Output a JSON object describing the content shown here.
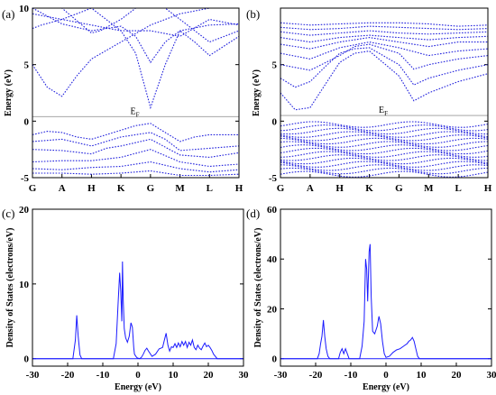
{
  "chart_data": [
    {
      "type": "line",
      "panel_label": "(a)",
      "ylabel": "Energy (eV)",
      "ylim": [
        -5,
        10
      ],
      "yticks": [
        -5,
        0,
        5,
        10
      ],
      "k_points": [
        "G",
        "A",
        "H",
        "K",
        "G",
        "M",
        "L",
        "H"
      ],
      "fermi_label": "E",
      "fermi_sub": "F",
      "fermi_level": 0.4,
      "series": [
        {
          "x": [
            0,
            0.5,
            1,
            1.5,
            2,
            3,
            4,
            5,
            6,
            7
          ],
          "y": [
            5,
            3,
            2.2,
            4,
            5.5,
            7,
            8.5,
            9.5,
            10,
            10
          ]
        },
        {
          "x": [
            0,
            0.3,
            1,
            1.5,
            2,
            3,
            4,
            5,
            6,
            7
          ],
          "y": [
            8.2,
            8.5,
            9,
            9.5,
            10,
            10,
            10,
            10,
            10,
            10
          ]
        },
        {
          "x": [
            0,
            1,
            2,
            3,
            3.5,
            4,
            4.5,
            5,
            6,
            7
          ],
          "y": [
            10,
            8.6,
            8,
            8.4,
            7.5,
            5.2,
            7,
            8,
            8.5,
            8.6
          ]
        },
        {
          "x": [
            0,
            1,
            2,
            2.3,
            3,
            3.5,
            4,
            4.5,
            5,
            6,
            7
          ],
          "y": [
            10,
            10,
            7.8,
            8,
            9,
            10,
            10,
            10,
            9,
            7,
            8
          ]
        },
        {
          "x": [
            0,
            1,
            2,
            3,
            3.5,
            4,
            4.5,
            5,
            5.5,
            6,
            7
          ],
          "y": [
            10,
            10,
            10,
            8,
            6,
            1.2,
            5,
            8,
            7,
            5.8,
            7.5
          ]
        },
        {
          "x": [
            0,
            1,
            2,
            3,
            4,
            5,
            6,
            7
          ],
          "y": [
            9.5,
            9,
            8.5,
            8,
            8,
            7.5,
            9,
            8.5
          ]
        },
        {
          "x": [
            0,
            0.5,
            1,
            1.5,
            2,
            2.5,
            3,
            3.5,
            4,
            4.5,
            5,
            5.5,
            6,
            7
          ],
          "y": [
            -1.2,
            -0.9,
            -1,
            -1.4,
            -1.6,
            -1.2,
            -0.8,
            -0.4,
            -0.2,
            -1,
            -1.8,
            -1.4,
            -1.2,
            -1.2
          ]
        },
        {
          "x": [
            0,
            1,
            1.5,
            2,
            2.5,
            3,
            3.5,
            4,
            4.5,
            5,
            6,
            7
          ],
          "y": [
            -1.8,
            -1.6,
            -1.9,
            -2.2,
            -1.8,
            -1.4,
            -1.2,
            -1,
            -1.6,
            -2.6,
            -2.4,
            -2.2
          ]
        },
        {
          "x": [
            0,
            1,
            2,
            2.5,
            3,
            4,
            5,
            6,
            7
          ],
          "y": [
            -2.5,
            -2.6,
            -2.9,
            -2.4,
            -2.2,
            -1.6,
            -3,
            -3.2,
            -2.8
          ]
        },
        {
          "x": [
            0,
            1,
            2,
            3,
            4,
            5,
            6,
            7
          ],
          "y": [
            -3.6,
            -3.5,
            -3.5,
            -3.2,
            -2.5,
            -3.6,
            -4,
            -3.8
          ]
        },
        {
          "x": [
            0,
            1,
            2,
            3,
            4,
            5,
            6,
            7
          ],
          "y": [
            -4.2,
            -4.3,
            -4.1,
            -4,
            -3.6,
            -4.2,
            -4.5,
            -4.3
          ]
        },
        {
          "x": [
            0,
            1,
            2,
            3,
            4,
            5,
            6,
            7
          ],
          "y": [
            -4.6,
            -4.6,
            -4.7,
            -4.6,
            -4.4,
            -4.8,
            -4.8,
            -4.7
          ]
        }
      ]
    },
    {
      "type": "line",
      "panel_label": "(b)",
      "ylabel": "Energy (eV)",
      "ylim": [
        -5,
        10
      ],
      "yticks": [
        -5,
        0,
        5
      ],
      "k_points": [
        "G",
        "A",
        "H",
        "K",
        "G",
        "M",
        "L",
        "H"
      ],
      "fermi_label": "E",
      "fermi_sub": "F",
      "fermi_level": 0.5,
      "series": [
        {
          "x": [
            0,
            0.5,
            1,
            1.5,
            2,
            2.5,
            3,
            4,
            4.5,
            5,
            6,
            7
          ],
          "y": [
            2.5,
            1,
            1.2,
            3.2,
            5.2,
            6,
            6.2,
            4,
            1.8,
            2.5,
            3.5,
            4.2
          ]
        },
        {
          "x": [
            0,
            0.5,
            1,
            1.5,
            2,
            2.5,
            3,
            4,
            4.5,
            5,
            6,
            7
          ],
          "y": [
            3.8,
            3,
            3.5,
            4.8,
            6,
            6.4,
            6.5,
            5,
            3.2,
            3.8,
            4.5,
            5
          ]
        },
        {
          "x": [
            0,
            1,
            2,
            2.5,
            3,
            4,
            4.5,
            5,
            6,
            7
          ],
          "y": [
            5,
            4.5,
            5.8,
            6.6,
            6.8,
            6,
            4.6,
            5,
            5.5,
            5.8
          ]
        },
        {
          "x": [
            0,
            1,
            2,
            3,
            4,
            5,
            6,
            7
          ],
          "y": [
            6,
            5.5,
            6.5,
            7,
            6.5,
            5.8,
            6.2,
            6.4
          ]
        },
        {
          "x": [
            0,
            1,
            2,
            3,
            4,
            5,
            6,
            7
          ],
          "y": [
            6.8,
            6.4,
            7,
            7.4,
            7,
            6.6,
            7,
            7
          ]
        },
        {
          "x": [
            0,
            1,
            2,
            3,
            4,
            5,
            6,
            7
          ],
          "y": [
            7.4,
            7,
            7.4,
            7.6,
            7.4,
            7.2,
            7.4,
            7.5
          ]
        },
        {
          "x": [
            0,
            1,
            2,
            3,
            4,
            5,
            6,
            7
          ],
          "y": [
            7.9,
            7.6,
            7.8,
            8,
            7.8,
            7.7,
            7.8,
            7.9
          ]
        },
        {
          "x": [
            0,
            1,
            2,
            3,
            4,
            5,
            6,
            7
          ],
          "y": [
            8.3,
            8.1,
            8.2,
            8.4,
            8.3,
            8.2,
            8.1,
            8.2
          ]
        },
        {
          "x": [
            0,
            1,
            2,
            3,
            4,
            5,
            6,
            7
          ],
          "y": [
            8.7,
            8.5,
            8.6,
            8.7,
            8.7,
            8.6,
            8.4,
            8.5
          ]
        }
      ],
      "valence_bands": {
        "from": -4.7,
        "to": -0.3,
        "count": 16,
        "amplitude": 0.25
      }
    },
    {
      "type": "line",
      "panel_label": "(c)",
      "xlabel": "Energy (eV)",
      "ylabel": "Density of States (electrons/eV)",
      "xlim": [
        -30,
        30
      ],
      "ylim": [
        -1,
        20
      ],
      "xticks": [
        -30,
        -20,
        -10,
        0,
        10,
        20,
        30
      ],
      "yticks": [
        0,
        10,
        20
      ],
      "series": [
        {
          "x": [
            -30,
            -18.5,
            -17.8,
            -17.4,
            -17,
            -16.5,
            -16,
            -7,
            -6.2,
            -5.6,
            -5.2,
            -4.9,
            -4.6,
            -4.4,
            -4.2,
            -3.9,
            -3.5,
            -3,
            -2.5,
            -2,
            -1.6,
            -1.2,
            -1,
            -0.6,
            -0.2,
            0.5,
            1,
            1.5,
            2,
            2.5,
            3,
            4,
            5,
            6,
            7,
            7.5,
            8,
            8.5,
            9,
            9.5,
            10,
            10.5,
            11,
            11.5,
            12,
            12.5,
            13,
            13.5,
            14,
            14.5,
            15,
            15.5,
            16,
            16.5,
            17,
            17.5,
            18,
            18.5,
            19,
            19.5,
            20,
            20.5,
            21,
            21.5,
            22,
            22.5,
            30
          ],
          "y": [
            0,
            0,
            2.5,
            5.8,
            3,
            0.5,
            0,
            0,
            2,
            8,
            11.5,
            9,
            5,
            13,
            8,
            4,
            2.8,
            2.2,
            3,
            4.8,
            4.2,
            1.5,
            0.6,
            0.3,
            0.1,
            0,
            0.2,
            0.6,
            1.1,
            1.4,
            1,
            0.3,
            0.6,
            1.3,
            1.5,
            2.5,
            3.4,
            1.8,
            1,
            1.6,
            1.5,
            2,
            1.5,
            2.1,
            1.6,
            2.3,
            1.8,
            2.3,
            1.5,
            2.2,
            1.8,
            2.5,
            1.5,
            1.2,
            1.8,
            1.4,
            1.2,
            1.7,
            2.1,
            1.6,
            1.8,
            1.5,
            1.1,
            0.6,
            0.3,
            0,
            0
          ]
        }
      ]
    },
    {
      "type": "line",
      "panel_label": "(d)",
      "xlabel": "Energy (eV)",
      "ylabel": "Density of States (electrons/eV)",
      "xlim": [
        -30,
        30
      ],
      "ylim": [
        -3,
        60
      ],
      "xticks": [
        -30,
        -20,
        -10,
        0,
        10,
        20,
        30
      ],
      "yticks": [
        0,
        20,
        40,
        60
      ],
      "series": [
        {
          "x": [
            -30,
            -19.5,
            -19,
            -18.6,
            -18.2,
            -17.8,
            -17.4,
            -17,
            -16.5,
            -16,
            -13.5,
            -13,
            -12.5,
            -12,
            -11.5,
            -11,
            -10.5,
            -7.5,
            -6.8,
            -6.2,
            -5.8,
            -5.5,
            -5.2,
            -4.8,
            -4.5,
            -4.2,
            -3.8,
            -3.2,
            -2.5,
            -2,
            -1.5,
            -1,
            -0.5,
            0,
            1,
            2,
            3,
            4,
            5,
            6,
            6.5,
            7,
            7.5,
            8,
            8.5,
            9,
            9.5,
            30
          ],
          "y": [
            0,
            0,
            2,
            6,
            9,
            15.5,
            9,
            4,
            1,
            0,
            0,
            2.5,
            4,
            2,
            4,
            2,
            0,
            0,
            5,
            15,
            40,
            36,
            23,
            43,
            46,
            25,
            11,
            10,
            13,
            17,
            14,
            7,
            2,
            0.5,
            1,
            2.5,
            3.5,
            4,
            5,
            6,
            7,
            7.5,
            8.5,
            7,
            4,
            1,
            0,
            0
          ]
        }
      ]
    }
  ]
}
